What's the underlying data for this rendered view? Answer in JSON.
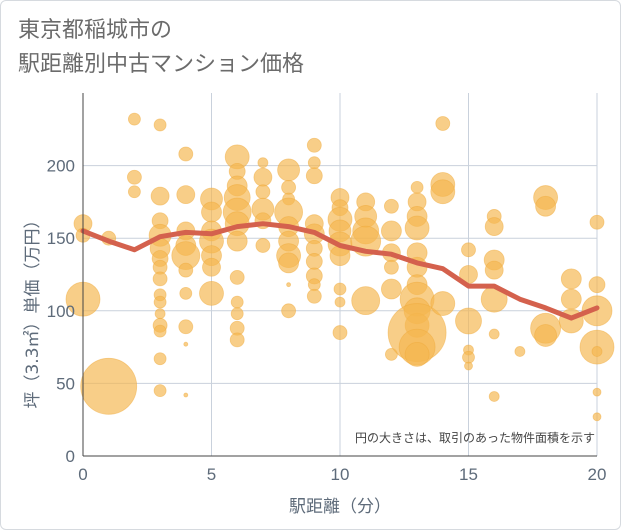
{
  "title_lines": [
    "東京都稲城市の",
    "駅距離別中古マンション価格"
  ],
  "chart_data": {
    "type": "scatter",
    "xlabel": "駅距離（分）",
    "ylabel": "坪（3.3㎡）単価（万円）",
    "xlim": [
      0,
      20
    ],
    "ylim": [
      0,
      250
    ],
    "x_ticks": [
      0,
      5,
      10,
      15,
      20
    ],
    "y_ticks": [
      0,
      50,
      100,
      150,
      200
    ],
    "grid": true,
    "annotation": "円の大きさは、取引のあった物件面積を示す",
    "colors": {
      "bubble": "#f5b750",
      "trend": "#d4614d",
      "grid": "#c9d1dc",
      "text": "#5e6b7a"
    },
    "points": [
      {
        "x": 0,
        "y": 160,
        "s": 9
      },
      {
        "x": 0,
        "y": 152,
        "s": 7
      },
      {
        "x": 0,
        "y": 108,
        "s": 17
      },
      {
        "x": 1,
        "y": 150,
        "s": 7
      },
      {
        "x": 1,
        "y": 48,
        "s": 28
      },
      {
        "x": 2,
        "y": 232,
        "s": 6
      },
      {
        "x": 2,
        "y": 192,
        "s": 7
      },
      {
        "x": 2,
        "y": 182,
        "s": 6
      },
      {
        "x": 3,
        "y": 228,
        "s": 6
      },
      {
        "x": 3,
        "y": 179,
        "s": 9
      },
      {
        "x": 3,
        "y": 162,
        "s": 8
      },
      {
        "x": 3,
        "y": 152,
        "s": 11
      },
      {
        "x": 3,
        "y": 143,
        "s": 10
      },
      {
        "x": 3,
        "y": 136,
        "s": 8
      },
      {
        "x": 3,
        "y": 130,
        "s": 7
      },
      {
        "x": 3,
        "y": 122,
        "s": 7
      },
      {
        "x": 3,
        "y": 111,
        "s": 6
      },
      {
        "x": 3,
        "y": 106,
        "s": 6
      },
      {
        "x": 3,
        "y": 98,
        "s": 5
      },
      {
        "x": 3,
        "y": 90,
        "s": 7
      },
      {
        "x": 3,
        "y": 86,
        "s": 6
      },
      {
        "x": 3,
        "y": 67,
        "s": 6
      },
      {
        "x": 3,
        "y": 45,
        "s": 6
      },
      {
        "x": 4,
        "y": 208,
        "s": 7
      },
      {
        "x": 4,
        "y": 180,
        "s": 9
      },
      {
        "x": 4,
        "y": 155,
        "s": 9
      },
      {
        "x": 4,
        "y": 145,
        "s": 10
      },
      {
        "x": 4,
        "y": 138,
        "s": 14
      },
      {
        "x": 4,
        "y": 128,
        "s": 7
      },
      {
        "x": 4,
        "y": 112,
        "s": 6
      },
      {
        "x": 4,
        "y": 89,
        "s": 7
      },
      {
        "x": 4,
        "y": 77,
        "s": 2
      },
      {
        "x": 4,
        "y": 42,
        "s": 2
      },
      {
        "x": 5,
        "y": 177,
        "s": 11
      },
      {
        "x": 5,
        "y": 168,
        "s": 10
      },
      {
        "x": 5,
        "y": 155,
        "s": 10
      },
      {
        "x": 5,
        "y": 148,
        "s": 12
      },
      {
        "x": 5,
        "y": 138,
        "s": 10
      },
      {
        "x": 5,
        "y": 130,
        "s": 9
      },
      {
        "x": 5,
        "y": 112,
        "s": 12
      },
      {
        "x": 6,
        "y": 206,
        "s": 12
      },
      {
        "x": 6,
        "y": 196,
        "s": 8
      },
      {
        "x": 6,
        "y": 186,
        "s": 10
      },
      {
        "x": 6,
        "y": 178,
        "s": 13
      },
      {
        "x": 6,
        "y": 168,
        "s": 14
      },
      {
        "x": 6,
        "y": 160,
        "s": 12
      },
      {
        "x": 6,
        "y": 148,
        "s": 10
      },
      {
        "x": 6,
        "y": 123,
        "s": 7
      },
      {
        "x": 6,
        "y": 106,
        "s": 6
      },
      {
        "x": 6,
        "y": 98,
        "s": 6
      },
      {
        "x": 6,
        "y": 88,
        "s": 7
      },
      {
        "x": 6,
        "y": 80,
        "s": 7
      },
      {
        "x": 7,
        "y": 202,
        "s": 5
      },
      {
        "x": 7,
        "y": 192,
        "s": 9
      },
      {
        "x": 7,
        "y": 182,
        "s": 7
      },
      {
        "x": 7,
        "y": 170,
        "s": 11
      },
      {
        "x": 7,
        "y": 162,
        "s": 8
      },
      {
        "x": 7,
        "y": 145,
        "s": 7
      },
      {
        "x": 8,
        "y": 197,
        "s": 11
      },
      {
        "x": 8,
        "y": 185,
        "s": 7
      },
      {
        "x": 8,
        "y": 177,
        "s": 6
      },
      {
        "x": 8,
        "y": 168,
        "s": 14
      },
      {
        "x": 8,
        "y": 158,
        "s": 10
      },
      {
        "x": 8,
        "y": 148,
        "s": 10
      },
      {
        "x": 8,
        "y": 138,
        "s": 12
      },
      {
        "x": 8,
        "y": 133,
        "s": 10
      },
      {
        "x": 8,
        "y": 118,
        "s": 2
      },
      {
        "x": 8,
        "y": 100,
        "s": 7
      },
      {
        "x": 9,
        "y": 214,
        "s": 7
      },
      {
        "x": 9,
        "y": 202,
        "s": 6
      },
      {
        "x": 9,
        "y": 193,
        "s": 8
      },
      {
        "x": 9,
        "y": 160,
        "s": 9
      },
      {
        "x": 9,
        "y": 153,
        "s": 10
      },
      {
        "x": 9,
        "y": 143,
        "s": 8
      },
      {
        "x": 9,
        "y": 134,
        "s": 8
      },
      {
        "x": 9,
        "y": 124,
        "s": 8
      },
      {
        "x": 9,
        "y": 118,
        "s": 6
      },
      {
        "x": 9,
        "y": 110,
        "s": 7
      },
      {
        "x": 10,
        "y": 178,
        "s": 9
      },
      {
        "x": 10,
        "y": 171,
        "s": 8
      },
      {
        "x": 10,
        "y": 163,
        "s": 12
      },
      {
        "x": 10,
        "y": 155,
        "s": 11
      },
      {
        "x": 10,
        "y": 146,
        "s": 12
      },
      {
        "x": 10,
        "y": 138,
        "s": 10
      },
      {
        "x": 10,
        "y": 115,
        "s": 6
      },
      {
        "x": 10,
        "y": 106,
        "s": 5
      },
      {
        "x": 10,
        "y": 85,
        "s": 7
      },
      {
        "x": 11,
        "y": 175,
        "s": 9
      },
      {
        "x": 11,
        "y": 165,
        "s": 11
      },
      {
        "x": 11,
        "y": 155,
        "s": 13
      },
      {
        "x": 11,
        "y": 148,
        "s": 15
      },
      {
        "x": 11,
        "y": 107,
        "s": 14
      },
      {
        "x": 12,
        "y": 172,
        "s": 7
      },
      {
        "x": 12,
        "y": 155,
        "s": 10
      },
      {
        "x": 12,
        "y": 140,
        "s": 9
      },
      {
        "x": 12,
        "y": 130,
        "s": 7
      },
      {
        "x": 12,
        "y": 115,
        "s": 10
      },
      {
        "x": 12,
        "y": 70,
        "s": 6
      },
      {
        "x": 13,
        "y": 185,
        "s": 6
      },
      {
        "x": 13,
        "y": 175,
        "s": 9
      },
      {
        "x": 13,
        "y": 165,
        "s": 10
      },
      {
        "x": 13,
        "y": 157,
        "s": 12
      },
      {
        "x": 13,
        "y": 140,
        "s": 10
      },
      {
        "x": 13,
        "y": 130,
        "s": 10
      },
      {
        "x": 13,
        "y": 118,
        "s": 10
      },
      {
        "x": 13,
        "y": 108,
        "s": 17
      },
      {
        "x": 13,
        "y": 100,
        "s": 13
      },
      {
        "x": 13,
        "y": 90,
        "s": 12
      },
      {
        "x": 13,
        "y": 85,
        "s": 29
      },
      {
        "x": 13,
        "y": 75,
        "s": 18
      },
      {
        "x": 13,
        "y": 70,
        "s": 12
      },
      {
        "x": 14,
        "y": 229,
        "s": 7
      },
      {
        "x": 14,
        "y": 187,
        "s": 12
      },
      {
        "x": 14,
        "y": 182,
        "s": 12
      },
      {
        "x": 14,
        "y": 105,
        "s": 12
      },
      {
        "x": 15,
        "y": 142,
        "s": 7
      },
      {
        "x": 15,
        "y": 125,
        "s": 9
      },
      {
        "x": 15,
        "y": 93,
        "s": 13
      },
      {
        "x": 15,
        "y": 73,
        "s": 5
      },
      {
        "x": 15,
        "y": 68,
        "s": 6
      },
      {
        "x": 15,
        "y": 62,
        "s": 4
      },
      {
        "x": 16,
        "y": 165,
        "s": 7
      },
      {
        "x": 16,
        "y": 158,
        "s": 9
      },
      {
        "x": 16,
        "y": 135,
        "s": 10
      },
      {
        "x": 16,
        "y": 128,
        "s": 9
      },
      {
        "x": 16,
        "y": 108,
        "s": 13
      },
      {
        "x": 16,
        "y": 84,
        "s": 5
      },
      {
        "x": 16,
        "y": 41,
        "s": 5
      },
      {
        "x": 17,
        "y": 72,
        "s": 5
      },
      {
        "x": 18,
        "y": 178,
        "s": 12
      },
      {
        "x": 18,
        "y": 172,
        "s": 10
      },
      {
        "x": 18,
        "y": 88,
        "s": 15
      },
      {
        "x": 18,
        "y": 83,
        "s": 11
      },
      {
        "x": 19,
        "y": 122,
        "s": 10
      },
      {
        "x": 19,
        "y": 108,
        "s": 10
      },
      {
        "x": 19,
        "y": 93,
        "s": 12
      },
      {
        "x": 20,
        "y": 161,
        "s": 7
      },
      {
        "x": 20,
        "y": 118,
        "s": 8
      },
      {
        "x": 20,
        "y": 100,
        "s": 15
      },
      {
        "x": 20,
        "y": 75,
        "s": 17
      },
      {
        "x": 20,
        "y": 72,
        "s": 5
      },
      {
        "x": 20,
        "y": 44,
        "s": 4
      },
      {
        "x": 20,
        "y": 27,
        "s": 4
      }
    ],
    "trend": [
      {
        "x": 0,
        "y": 155
      },
      {
        "x": 1,
        "y": 148
      },
      {
        "x": 2,
        "y": 142
      },
      {
        "x": 3,
        "y": 151
      },
      {
        "x": 4,
        "y": 154
      },
      {
        "x": 5,
        "y": 153
      },
      {
        "x": 6,
        "y": 158
      },
      {
        "x": 7,
        "y": 160
      },
      {
        "x": 8,
        "y": 158
      },
      {
        "x": 9,
        "y": 154
      },
      {
        "x": 10,
        "y": 145
      },
      {
        "x": 11,
        "y": 141
      },
      {
        "x": 12,
        "y": 139
      },
      {
        "x": 13,
        "y": 133
      },
      {
        "x": 14,
        "y": 129
      },
      {
        "x": 15,
        "y": 117
      },
      {
        "x": 16,
        "y": 117
      },
      {
        "x": 17,
        "y": 108
      },
      {
        "x": 18,
        "y": 102
      },
      {
        "x": 19,
        "y": 95
      },
      {
        "x": 20,
        "y": 102
      }
    ]
  }
}
